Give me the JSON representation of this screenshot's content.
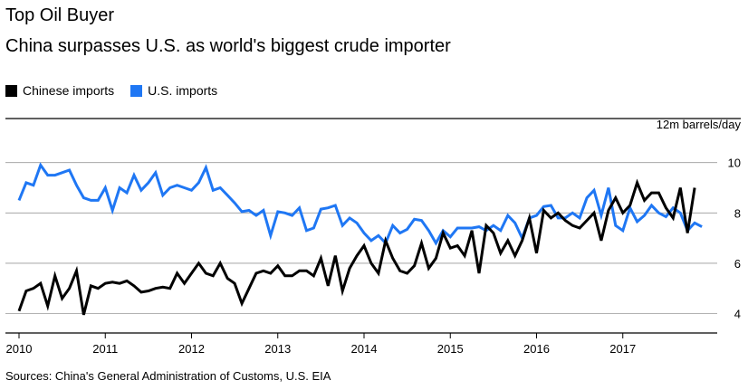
{
  "header": {
    "title": "Top Oil Buyer",
    "subtitle": "China surpasses U.S. as world's biggest crude importer"
  },
  "footer": {
    "source": "Sources: China's General Administration of Customs, U.S. EIA"
  },
  "chart_data": {
    "type": "line",
    "title": "Top Oil Buyer",
    "subtitle": "China surpasses U.S. as world's biggest crude importer",
    "unit_label": "12m barrels/day",
    "xlabel": "",
    "ylabel": "",
    "xlim": [
      2010,
      2018.0
    ],
    "ylim": [
      3.3,
      10.6
    ],
    "yticks": [
      4,
      6,
      8,
      10
    ],
    "yticklabels": [
      "4",
      "6",
      "8",
      "10"
    ],
    "xticks": [
      2010,
      2011,
      2012,
      2013,
      2014,
      2015,
      2016,
      2017
    ],
    "xticklabels": [
      "2010",
      "2011",
      "2012",
      "2013",
      "2014",
      "2015",
      "2016",
      "2017"
    ],
    "grid": "horizontal",
    "legend_position": "top-left",
    "series": [
      {
        "name": "Chinese imports",
        "color": "#000000",
        "x_start": 2010.0,
        "x_step_months": 1,
        "values": [
          4.1,
          4.9,
          5.0,
          5.2,
          4.3,
          5.5,
          4.6,
          5.0,
          5.7,
          3.95,
          5.1,
          5.0,
          5.2,
          5.25,
          5.2,
          5.3,
          5.1,
          4.85,
          4.9,
          5.0,
          5.05,
          5.0,
          5.6,
          5.2,
          5.6,
          6.0,
          5.6,
          5.5,
          6.0,
          5.4,
          5.2,
          4.4,
          5.0,
          5.6,
          5.7,
          5.6,
          5.9,
          5.5,
          5.5,
          5.7,
          5.7,
          5.5,
          6.2,
          5.1,
          6.3,
          4.9,
          5.8,
          6.3,
          6.7,
          6.0,
          5.6,
          6.9,
          6.2,
          5.7,
          5.6,
          5.9,
          6.8,
          5.8,
          6.2,
          7.2,
          6.6,
          6.7,
          6.3,
          7.3,
          5.6,
          7.5,
          7.2,
          6.4,
          6.9,
          6.3,
          6.9,
          7.8,
          6.4,
          8.1,
          7.8,
          8.0,
          7.7,
          7.5,
          7.4,
          7.7,
          8.0,
          6.9,
          8.1,
          8.6,
          8.0,
          8.3,
          9.2,
          8.5,
          8.8,
          8.8,
          8.2,
          7.8,
          9.0,
          7.2,
          9.0
        ],
        "labels": [
          "Chinese imports"
        ]
      },
      {
        "name": "U.S. imports",
        "color": "#1f77f4",
        "x_start": 2010.0,
        "x_step_months": 1,
        "values": [
          8.5,
          9.2,
          9.1,
          9.9,
          9.5,
          9.5,
          9.6,
          9.7,
          9.1,
          8.6,
          8.5,
          8.5,
          9.0,
          8.1,
          9.0,
          8.8,
          9.5,
          8.9,
          9.2,
          9.6,
          8.7,
          9.0,
          9.1,
          9.0,
          8.9,
          9.2,
          9.8,
          8.9,
          9.0,
          8.7,
          8.4,
          8.05,
          8.1,
          7.9,
          8.1,
          7.1,
          8.05,
          8.0,
          7.9,
          8.2,
          7.3,
          7.4,
          8.15,
          8.2,
          8.3,
          7.5,
          7.8,
          7.6,
          7.2,
          6.9,
          7.1,
          6.8,
          7.5,
          7.2,
          7.35,
          7.75,
          7.7,
          7.3,
          6.8,
          7.3,
          7.05,
          7.4,
          7.4,
          7.4,
          7.45,
          7.3,
          7.5,
          7.3,
          7.9,
          7.6,
          7.0,
          7.8,
          7.9,
          8.25,
          8.3,
          7.8,
          7.8,
          8.0,
          7.8,
          8.6,
          8.9,
          7.9,
          9.0,
          7.5,
          7.3,
          8.2,
          7.65,
          7.9,
          8.3,
          8.0,
          7.85,
          8.2,
          8.0,
          7.3,
          7.6,
          7.45
        ],
        "labels": [
          "U.S. imports"
        ]
      }
    ]
  }
}
